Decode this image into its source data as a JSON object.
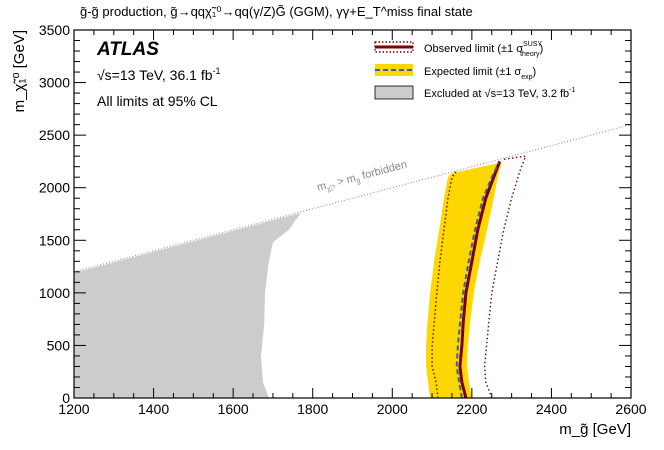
{
  "chart_data": {
    "type": "area",
    "title": "g̃-g̃ production, g̃→qqχ̃₁⁰→qq(γ/Z)G̃ (GGM), γγ+E_T^miss final state",
    "xlabel": "m_g̃ [GeV]",
    "ylabel": "m_χ̃₁⁰ [GeV]",
    "xlim": [
      1200,
      2600
    ],
    "ylim": [
      0,
      3500
    ],
    "xticks": [
      1200,
      1400,
      1600,
      1800,
      2000,
      2200,
      2400,
      2600
    ],
    "yticks": [
      0,
      500,
      1000,
      1500,
      2000,
      2500,
      3000,
      3500
    ],
    "xtick_labels": [
      "1200",
      "1400",
      "1600",
      "1800",
      "2000",
      "2200",
      "2400",
      "2600"
    ],
    "ytick_labels": [
      "0",
      "500",
      "1000",
      "1500",
      "2000",
      "2500",
      "3000",
      "3500"
    ],
    "grid": false,
    "legend_position": "top-right",
    "annotations": {
      "experiment": "ATLAS",
      "energy": "√s=13 TeV, 36.1 fb",
      "energy_exp": "-1",
      "cl": "All limits at 95% CL",
      "forbidden": "m",
      "forbidden_sub": "χ̃₁⁰",
      "forbidden_mid": " > m",
      "forbidden_sub2": "g̃",
      "forbidden_tail": " forbidden"
    },
    "legend": {
      "observed": "Observed limit (±1 σ",
      "observed_sup": "SUSY",
      "observed_sub": "theory",
      "expected": "Expected limit (±1 σ",
      "expected_sub": "exp",
      "excluded": "Excluded at √s=13 TeV, 3.2 fb",
      "excluded_sup": "-1"
    },
    "colors": {
      "observed": "#7a0000",
      "expected": "#3a5fa8",
      "band": "#ffd700",
      "excluded": "#cccccc",
      "diagonal": "#888888"
    },
    "series": [
      {
        "name": "Observed limit",
        "style": "solid",
        "points": [
          [
            2185,
            0
          ],
          [
            2175,
            150
          ],
          [
            2170,
            300
          ],
          [
            2175,
            500
          ],
          [
            2178,
            700
          ],
          [
            2185,
            1000
          ],
          [
            2200,
            1300
          ],
          [
            2215,
            1600
          ],
          [
            2235,
            1900
          ],
          [
            2255,
            2100
          ],
          [
            2270,
            2250
          ]
        ]
      },
      {
        "name": "Observed -1σ theory",
        "style": "dotted",
        "points": [
          [
            2115,
            0
          ],
          [
            2110,
            150
          ],
          [
            2100,
            300
          ],
          [
            2100,
            500
          ],
          [
            2105,
            700
          ],
          [
            2112,
            1000
          ],
          [
            2120,
            1300
          ],
          [
            2130,
            1600
          ],
          [
            2140,
            1900
          ],
          [
            2150,
            2100
          ],
          [
            2160,
            2150
          ]
        ]
      },
      {
        "name": "Observed +1σ theory",
        "style": "dotted",
        "points": [
          [
            2250,
            0
          ],
          [
            2235,
            150
          ],
          [
            2232,
            300
          ],
          [
            2237,
            500
          ],
          [
            2242,
            700
          ],
          [
            2250,
            1000
          ],
          [
            2265,
            1300
          ],
          [
            2280,
            1600
          ],
          [
            2300,
            1900
          ],
          [
            2320,
            2150
          ],
          [
            2335,
            2300
          ],
          [
            2280,
            2270
          ]
        ]
      },
      {
        "name": "Expected limit",
        "style": "dashed",
        "points": [
          [
            2175,
            0
          ],
          [
            2168,
            150
          ],
          [
            2162,
            300
          ],
          [
            2165,
            500
          ],
          [
            2170,
            700
          ],
          [
            2178,
            1000
          ],
          [
            2192,
            1300
          ],
          [
            2208,
            1600
          ],
          [
            2228,
            1900
          ],
          [
            2250,
            2100
          ],
          [
            2268,
            2240
          ]
        ]
      },
      {
        "name": "Expected band (±1σ exp)",
        "style": "band",
        "lower": [
          [
            2095,
            0
          ],
          [
            2090,
            150
          ],
          [
            2085,
            300
          ],
          [
            2085,
            500
          ],
          [
            2088,
            700
          ],
          [
            2095,
            1000
          ],
          [
            2105,
            1300
          ],
          [
            2118,
            1600
          ],
          [
            2130,
            1900
          ],
          [
            2140,
            2100
          ],
          [
            2150,
            2140
          ]
        ],
        "upper": [
          [
            2200,
            0
          ],
          [
            2193,
            150
          ],
          [
            2188,
            300
          ],
          [
            2190,
            500
          ],
          [
            2195,
            700
          ],
          [
            2205,
            1000
          ],
          [
            2220,
            1300
          ],
          [
            2238,
            1600
          ],
          [
            2255,
            1900
          ],
          [
            2265,
            2100
          ],
          [
            2275,
            2240
          ]
        ]
      },
      {
        "name": "Excluded at √s=13 TeV, 3.2 fb-1",
        "style": "filled",
        "points": [
          [
            1200,
            0
          ],
          [
            1200,
            1190
          ],
          [
            1770,
            1760
          ],
          [
            1740,
            1600
          ],
          [
            1700,
            1480
          ],
          [
            1690,
            1300
          ],
          [
            1680,
            1000
          ],
          [
            1678,
            700
          ],
          [
            1670,
            400
          ],
          [
            1675,
            150
          ],
          [
            1690,
            0
          ]
        ]
      }
    ],
    "diagonal": {
      "name": "kinematic limit",
      "points": [
        [
          1200,
          1200
        ],
        [
          2600,
          2600
        ]
      ]
    }
  }
}
